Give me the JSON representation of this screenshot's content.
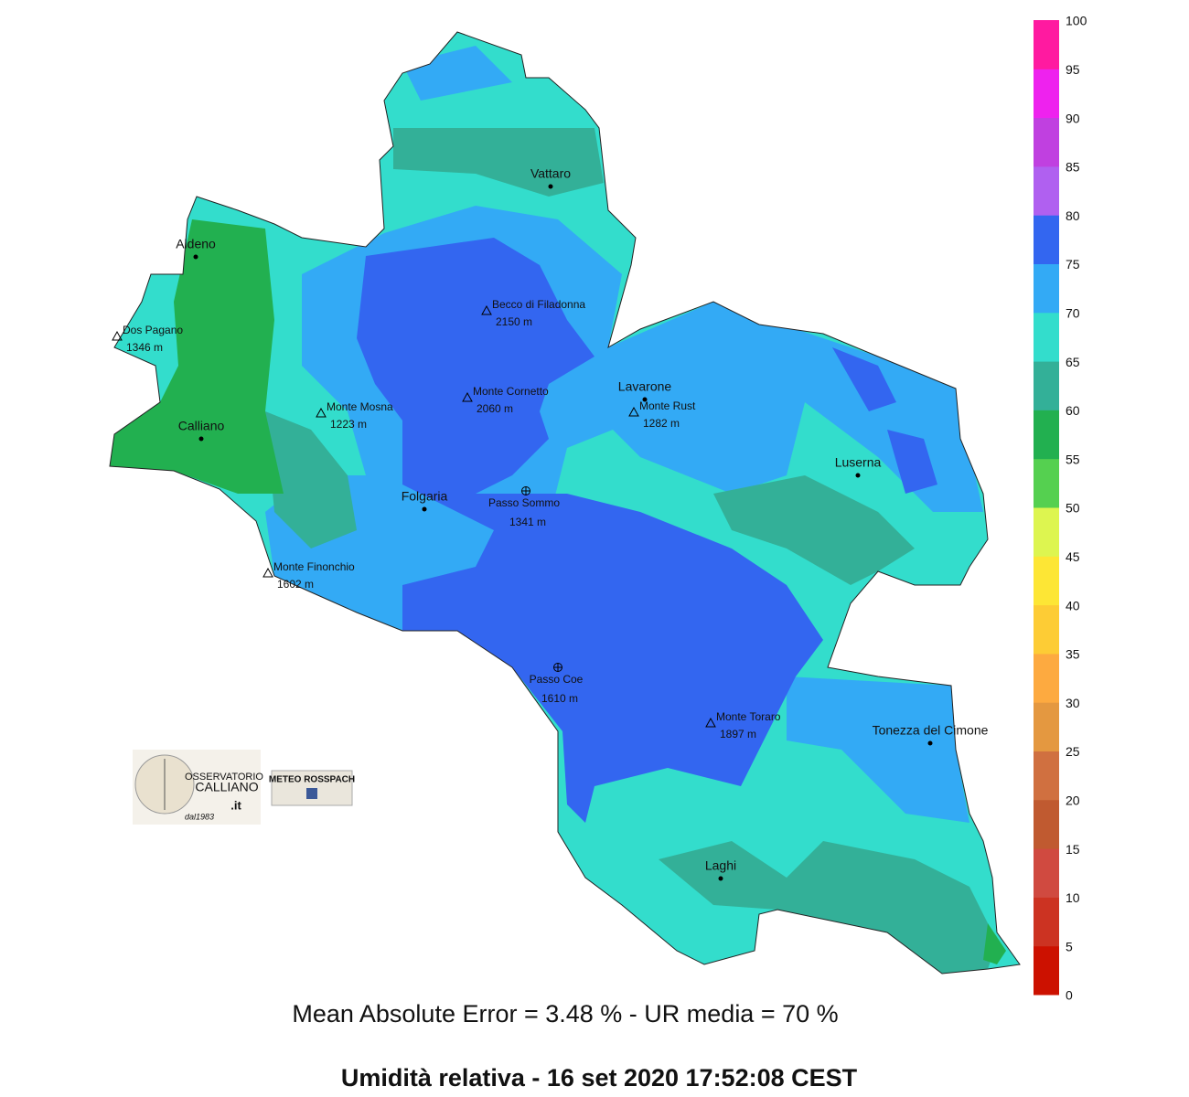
{
  "towns": [
    "Aldeno",
    "Calliano",
    "Vattaro",
    "Folgaria",
    "Lavarone",
    "Luserna",
    "Tonezza del Cimone",
    "Laghi"
  ],
  "peaks": [
    {
      "name": "Dos Pagano",
      "elevation": "1346 m"
    },
    {
      "name": "Monte Mosna",
      "elevation": "1223 m"
    },
    {
      "name": "Becco di Filadonna",
      "elevation": "2150 m"
    },
    {
      "name": "Monte Cornetto",
      "elevation": "2060 m"
    },
    {
      "name": "Monte Rust",
      "elevation": "1282 m"
    },
    {
      "name": "Monte Finonchio",
      "elevation": "1602 m"
    },
    {
      "name": "Monte Toraro",
      "elevation": "1897 m"
    }
  ],
  "passes": [
    {
      "name": "Passo Sommo",
      "elevation": "1341 m"
    },
    {
      "name": "Passo Coe",
      "elevation": "1610 m"
    }
  ],
  "legend": {
    "ticks": [
      0,
      5,
      10,
      15,
      20,
      25,
      30,
      35,
      40,
      45,
      50,
      55,
      60,
      65,
      70,
      75,
      80,
      85,
      90,
      95,
      100
    ],
    "colors": [
      "#cc1100",
      "#cc3322",
      "#d04a40",
      "#c05a30",
      "#d07040",
      "#e49840",
      "#fdaa40",
      "#fdcc35",
      "#fde635",
      "#ddf550",
      "#55d050",
      "#22b050",
      "#33b098",
      "#33ddcc",
      "#33aaf5",
      "#3366f0",
      "#b060f0",
      "#c040e0",
      "#ee22ee",
      "#ff1aa0"
    ]
  },
  "logos": [
    {
      "line1": "OSSERVATORIO",
      "line2": "CALLIANO",
      "line3": ".it",
      "line4": "dal1983"
    },
    {
      "line1": "METEO ROSSPACH"
    }
  ],
  "footer": {
    "stats": "Mean Absolute Error = 3.48 %  -  UR media = 70 %",
    "title": "Umidità relativa  -  16 set 2020 17:52:08  CEST"
  }
}
